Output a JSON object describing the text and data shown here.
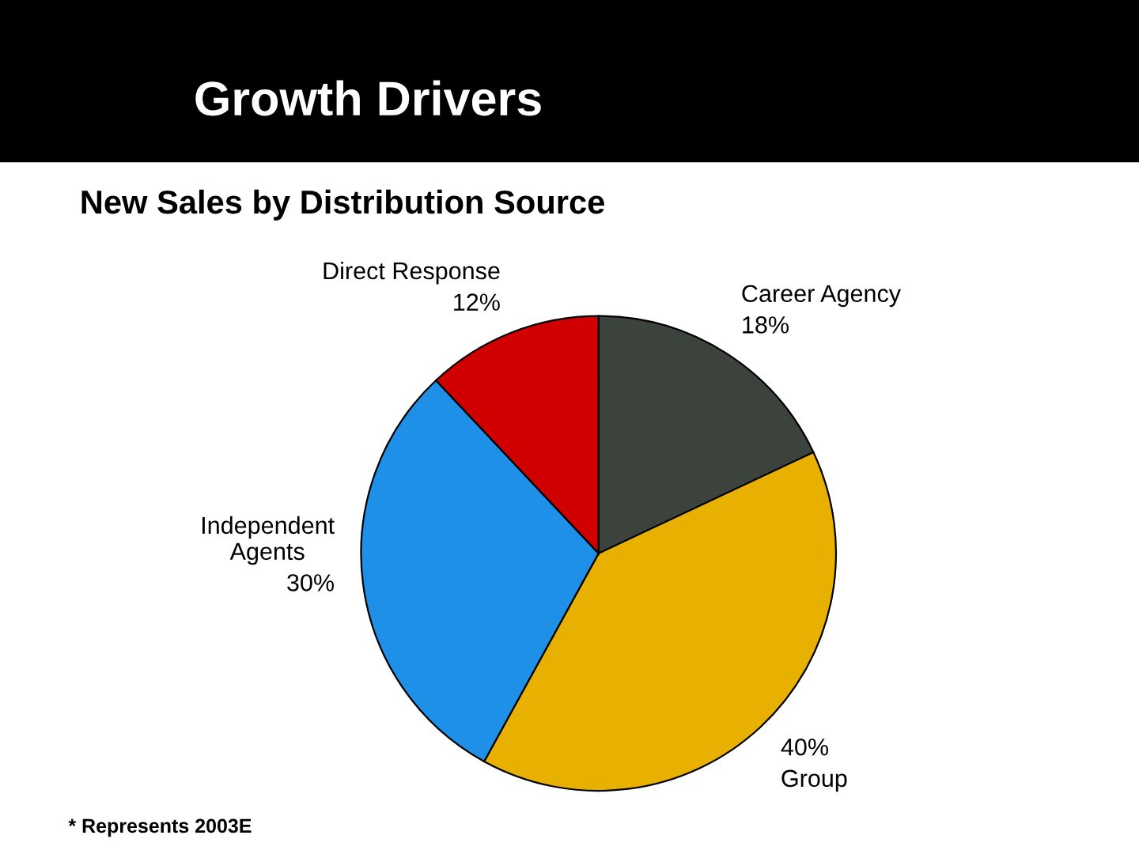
{
  "chart_data": {
    "type": "pie",
    "title": "Growth Drivers",
    "subtitle": "New Sales by Distribution Source",
    "categories": [
      "Career Agency",
      "Group",
      "Independent\nAgents",
      "Direct Response"
    ],
    "values": [
      18,
      40,
      30,
      12
    ],
    "value_labels": [
      "18%",
      "40%",
      "30%",
      "12%"
    ],
    "colors": [
      "#3c423c",
      "#e8b000",
      "#1e90e8",
      "#d00000"
    ],
    "annotations": [
      "* Represents 2003E"
    ],
    "legend": false
  }
}
